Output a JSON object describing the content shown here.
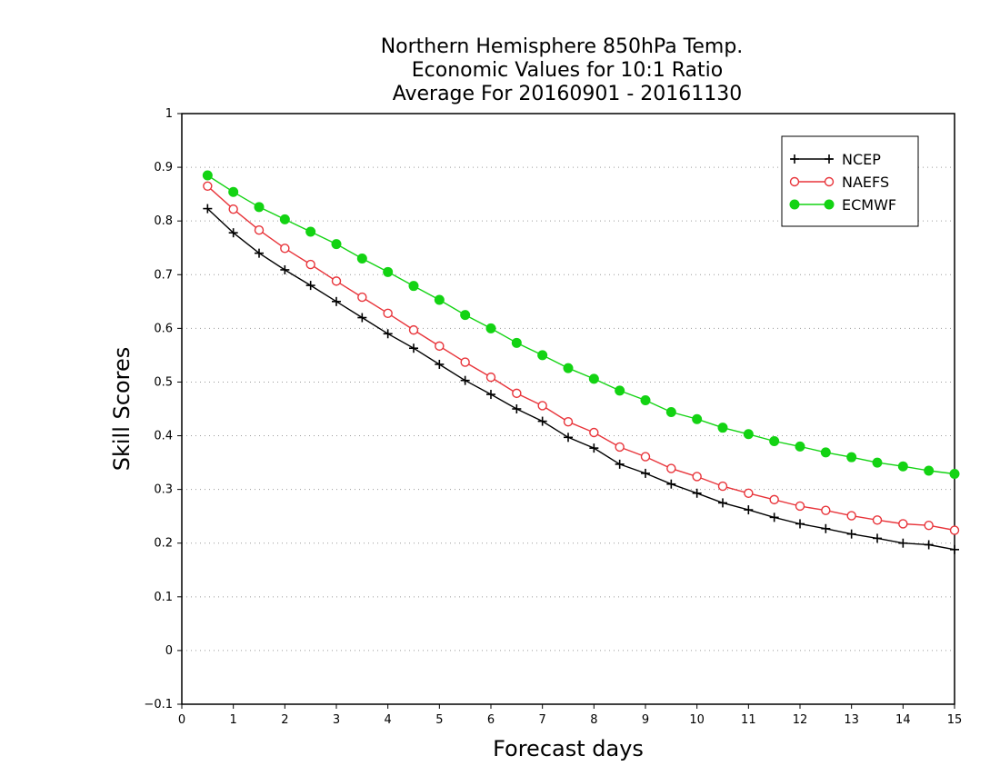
{
  "chart_data": {
    "type": "line",
    "title": [
      "Northern Hemisphere 850hPa Temp.",
      "Economic Values for 10:1 Ratio",
      "Average For 20160901 - 20161130"
    ],
    "xlabel": "Forecast days",
    "ylabel": "Skill Scores",
    "xlim": [
      0,
      15
    ],
    "ylim": [
      -0.1,
      1
    ],
    "xticks": [
      0,
      1,
      2,
      3,
      4,
      5,
      6,
      7,
      8,
      9,
      10,
      11,
      12,
      13,
      14,
      15
    ],
    "yticks": [
      -0.1,
      0,
      0.1,
      0.2,
      0.3,
      0.4,
      0.5,
      0.6,
      0.7,
      0.8,
      0.9,
      1
    ],
    "xtick_labels": [
      "0",
      "1",
      "2",
      "3",
      "4",
      "5",
      "6",
      "7",
      "8",
      "9",
      "10",
      "11",
      "12",
      "13",
      "14",
      "15"
    ],
    "ytick_labels": [
      "−0.1",
      "0",
      "0.1",
      "0.2",
      "0.3",
      "0.4",
      "0.5",
      "0.6",
      "0.7",
      "0.8",
      "0.9",
      "1"
    ],
    "grid": "horizontal dotted",
    "legend_position": "top-right",
    "x": [
      0.5,
      1.0,
      1.5,
      2.0,
      2.5,
      3.0,
      3.5,
      4.0,
      4.5,
      5.0,
      5.5,
      6.0,
      6.5,
      7.0,
      7.5,
      8.0,
      8.5,
      9.0,
      9.5,
      10.0,
      10.5,
      11.0,
      11.5,
      12.0,
      12.5,
      13.0,
      13.5,
      14.0,
      14.5,
      15.0
    ],
    "series": [
      {
        "name": "NCEP",
        "color": "#000000",
        "marker": "plus",
        "values": [
          0.823,
          0.778,
          0.74,
          0.709,
          0.68,
          0.65,
          0.62,
          0.59,
          0.563,
          0.533,
          0.503,
          0.477,
          0.45,
          0.427,
          0.397,
          0.377,
          0.347,
          0.33,
          0.31,
          0.293,
          0.275,
          0.262,
          0.248,
          0.236,
          0.227,
          0.217,
          0.209,
          0.2,
          0.197,
          0.188
        ]
      },
      {
        "name": "NAEFS",
        "color": "#e8343a",
        "marker": "open-circle",
        "values": [
          0.865,
          0.822,
          0.783,
          0.749,
          0.719,
          0.688,
          0.658,
          0.628,
          0.597,
          0.567,
          0.537,
          0.509,
          0.479,
          0.456,
          0.426,
          0.406,
          0.379,
          0.361,
          0.339,
          0.324,
          0.306,
          0.293,
          0.281,
          0.269,
          0.261,
          0.251,
          0.243,
          0.236,
          0.233,
          0.224
        ]
      },
      {
        "name": "ECMWF",
        "color": "#13d313",
        "marker": "filled-circle",
        "values": [
          0.885,
          0.854,
          0.826,
          0.803,
          0.78,
          0.757,
          0.73,
          0.705,
          0.679,
          0.653,
          0.625,
          0.6,
          0.573,
          0.55,
          0.526,
          0.506,
          0.484,
          0.466,
          0.444,
          0.431,
          0.415,
          0.403,
          0.39,
          0.38,
          0.369,
          0.36,
          0.35,
          0.343,
          0.335,
          0.329
        ]
      }
    ]
  }
}
